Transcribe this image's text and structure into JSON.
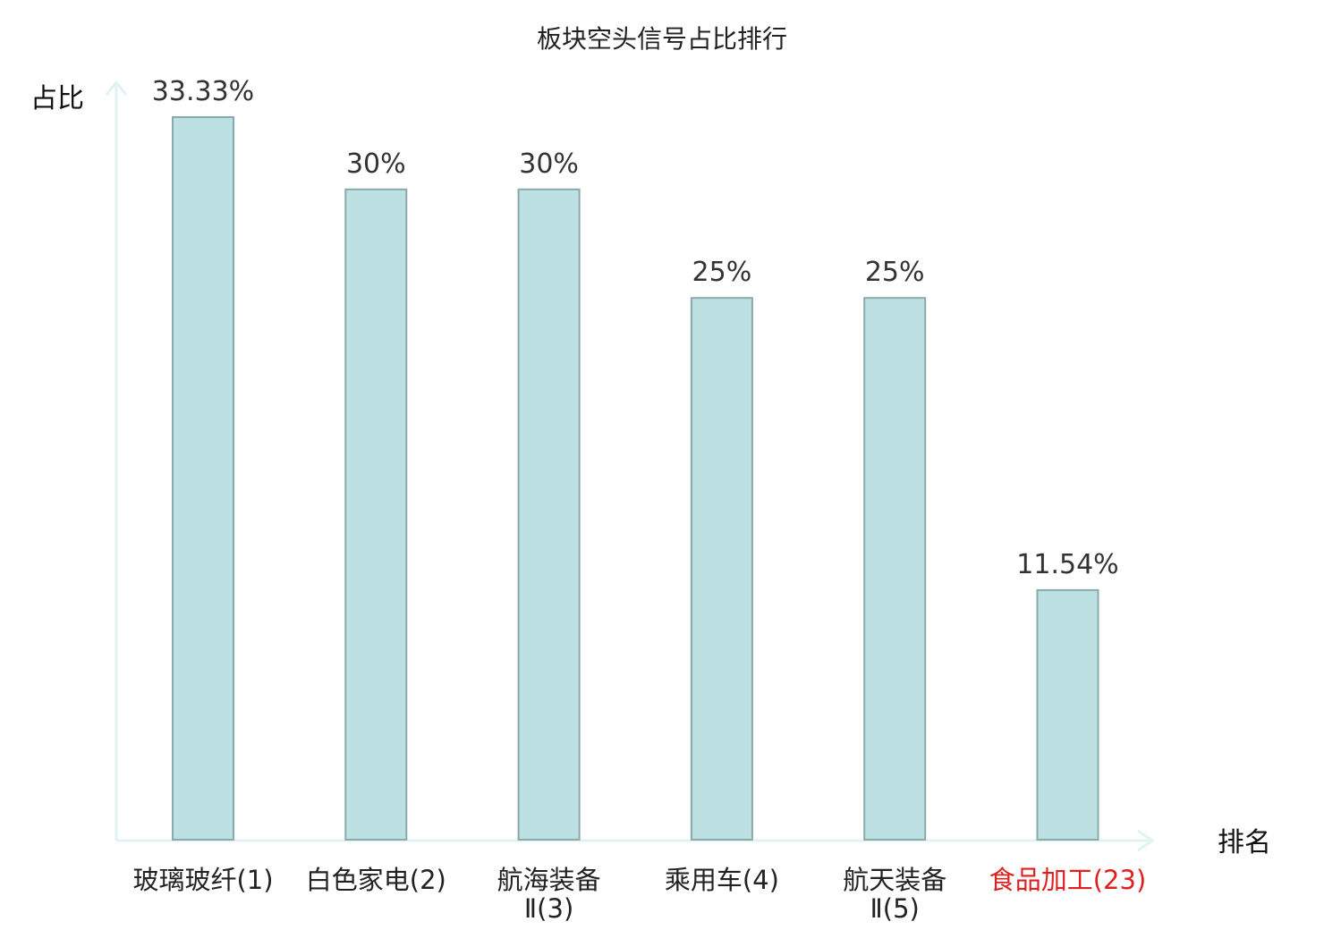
{
  "chart_data": {
    "type": "bar",
    "title": "板块空头信号占比排行",
    "xlabel": "排名",
    "ylabel": "占比",
    "ylim": [
      0,
      34.0
    ],
    "grid": false,
    "legend": "none",
    "categories": [
      {
        "name": "玻璃玻纤",
        "rank": "(1)",
        "lines": [
          "玻璃玻纤(1)"
        ],
        "highlight": false
      },
      {
        "name": "白色家电",
        "rank": "(2)",
        "lines": [
          "白色家电(2)"
        ],
        "highlight": false
      },
      {
        "name": "航海装备",
        "rank": "Ⅱ(3)",
        "lines": [
          "航海装备",
          "Ⅱ(3)"
        ],
        "highlight": false
      },
      {
        "name": "乘用车",
        "rank": "(4)",
        "lines": [
          "乘用车(4)"
        ],
        "highlight": false
      },
      {
        "name": "航天装备",
        "rank": "Ⅱ(5)",
        "lines": [
          "航天装备",
          "Ⅱ(5)"
        ],
        "highlight": false
      },
      {
        "name": "食品加工",
        "rank": "(23)",
        "lines": [
          "食品加工(23)"
        ],
        "highlight": true
      }
    ],
    "values": [
      33.33,
      30,
      30,
      25,
      25,
      11.54
    ],
    "value_labels": [
      "33.33%",
      "30%",
      "30%",
      "25%",
      "25%",
      "11.54%"
    ]
  },
  "colors": {
    "bar_fill": "#bde1e3",
    "bar_stroke": "#8aa9ab",
    "axis": "#e0f2f1",
    "highlight_text": "#e02020",
    "text": "#222222"
  }
}
